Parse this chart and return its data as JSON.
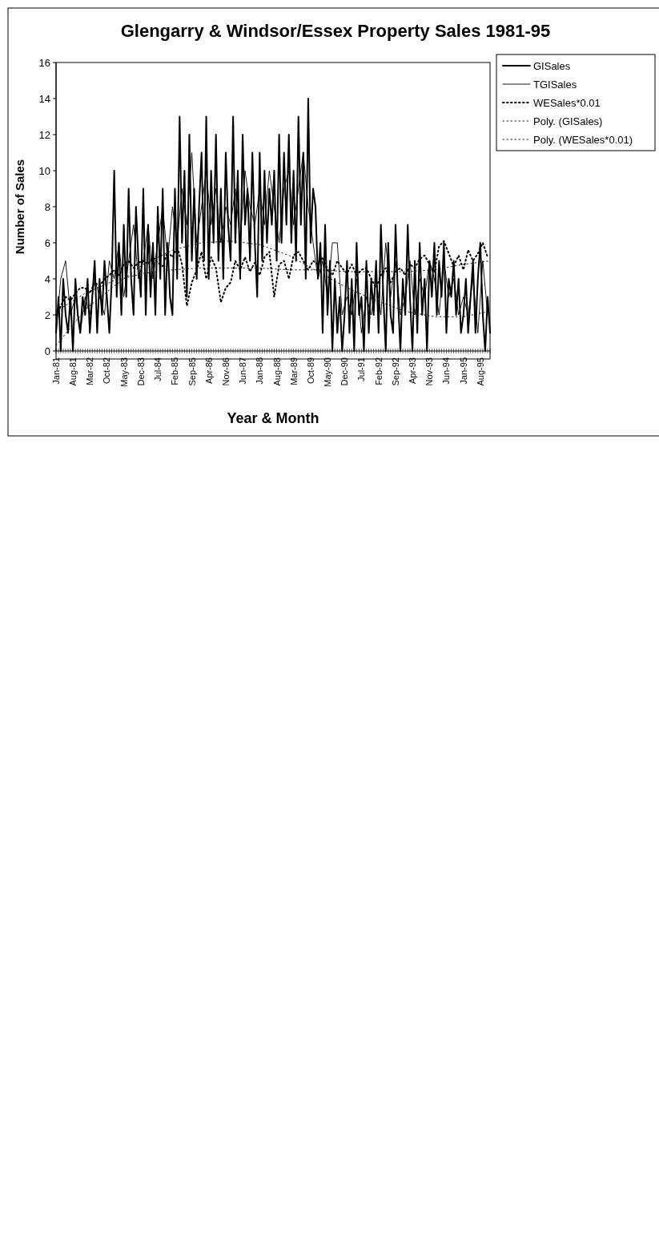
{
  "chart_data": {
    "type": "line",
    "title": "Glengarry & Windsor/Essex Property Sales 1981-95",
    "xlabel": "Year & Month",
    "ylabel": "Number of Sales",
    "x": [
      "1981-01",
      "1981-02",
      "1981-03",
      "1981-04",
      "1981-05",
      "1981-06",
      "1981-07",
      "1981-08",
      "1981-09",
      "1981-10",
      "1981-11",
      "1981-12",
      "1982-01",
      "1982-02",
      "1982-03",
      "1982-04",
      "1982-05",
      "1982-06",
      "1982-07",
      "1982-08",
      "1982-09",
      "1982-10",
      "1982-11",
      "1982-12",
      "1983-01",
      "1983-02",
      "1983-03",
      "1983-04",
      "1983-05",
      "1983-06",
      "1983-07",
      "1983-08",
      "1983-09",
      "1983-10",
      "1983-11",
      "1983-12",
      "1984-01",
      "1984-02",
      "1984-03",
      "1984-04",
      "1984-05",
      "1984-06",
      "1984-07",
      "1984-08",
      "1984-09",
      "1984-10",
      "1984-11",
      "1984-12",
      "1985-01",
      "1985-02",
      "1985-03",
      "1985-04",
      "1985-05",
      "1985-06",
      "1985-07",
      "1985-08",
      "1985-09",
      "1985-10",
      "1985-11",
      "1985-12",
      "1986-01",
      "1986-02",
      "1986-03",
      "1986-04",
      "1986-05",
      "1986-06",
      "1986-07",
      "1986-08",
      "1986-09",
      "1986-10",
      "1986-11",
      "1986-12",
      "1987-01",
      "1987-02",
      "1987-03",
      "1987-04",
      "1987-05",
      "1987-06",
      "1987-07",
      "1987-08",
      "1987-09",
      "1987-10",
      "1987-11",
      "1987-12",
      "1988-01",
      "1988-02",
      "1988-03",
      "1988-04",
      "1988-05",
      "1988-06",
      "1988-07",
      "1988-08",
      "1988-09",
      "1988-10",
      "1988-11",
      "1988-12",
      "1989-01",
      "1989-02",
      "1989-03",
      "1989-04",
      "1989-05",
      "1989-06",
      "1989-07",
      "1989-08",
      "1989-09",
      "1989-10",
      "1989-11",
      "1989-12",
      "1990-01",
      "1990-02",
      "1990-03",
      "1990-04",
      "1990-05",
      "1990-06",
      "1990-07",
      "1990-08",
      "1990-09",
      "1990-10",
      "1990-11",
      "1990-12",
      "1991-01",
      "1991-02",
      "1991-03",
      "1991-04",
      "1991-05",
      "1991-06",
      "1991-07",
      "1991-08",
      "1991-09",
      "1991-10",
      "1991-11",
      "1991-12",
      "1992-01",
      "1992-02",
      "1992-03",
      "1992-04",
      "1992-05",
      "1992-06",
      "1992-07",
      "1992-08",
      "1992-09",
      "1992-10",
      "1992-11",
      "1992-12",
      "1993-01",
      "1993-02",
      "1993-03",
      "1993-04",
      "1993-05",
      "1993-06",
      "1993-07",
      "1993-08",
      "1993-09",
      "1993-10",
      "1993-11",
      "1993-12",
      "1994-01",
      "1994-02",
      "1994-03",
      "1994-04",
      "1994-05",
      "1994-06",
      "1994-07",
      "1994-08",
      "1994-09",
      "1994-10",
      "1994-11",
      "1994-12",
      "1995-01",
      "1995-02",
      "1995-03",
      "1995-04",
      "1995-05",
      "1995-06",
      "1995-07",
      "1995-08",
      "1995-09",
      "1995-10",
      "1995-11",
      "1995-12"
    ],
    "xlim": [
      "1981-01",
      "1995-12"
    ],
    "xticks": [
      {
        "value": "1981-01",
        "label": "Jan-81"
      },
      {
        "value": "1981-08",
        "label": "Aug-81"
      },
      {
        "value": "1982-03",
        "label": "Mar-82"
      },
      {
        "value": "1982-10",
        "label": "Oct-82"
      },
      {
        "value": "1983-05",
        "label": "May-83"
      },
      {
        "value": "1983-12",
        "label": "Dec-83"
      },
      {
        "value": "1984-07",
        "label": "Jul-84"
      },
      {
        "value": "1985-02",
        "label": "Feb-85"
      },
      {
        "value": "1985-09",
        "label": "Sep-85"
      },
      {
        "value": "1986-04",
        "label": "Apr-86"
      },
      {
        "value": "1986-11",
        "label": "Nov-86"
      },
      {
        "value": "1987-06",
        "label": "Jun-87"
      },
      {
        "value": "1988-01",
        "label": "Jan-88"
      },
      {
        "value": "1988-08",
        "label": "Aug-88"
      },
      {
        "value": "1989-03",
        "label": "Mar-89"
      },
      {
        "value": "1989-10",
        "label": "Oct-89"
      },
      {
        "value": "1990-05",
        "label": "May-90"
      },
      {
        "value": "1990-12",
        "label": "Dec-90"
      },
      {
        "value": "1991-07",
        "label": "Jul-91"
      },
      {
        "value": "1992-02",
        "label": "Feb-92"
      },
      {
        "value": "1992-09",
        "label": "Sep-92"
      },
      {
        "value": "1993-04",
        "label": "Apr-93"
      },
      {
        "value": "1993-11",
        "label": "Nov-93"
      },
      {
        "value": "1994-06",
        "label": "Jun-94"
      },
      {
        "value": "1995-01",
        "label": "Jan-95"
      },
      {
        "value": "1995-08",
        "label": "Aug-95"
      }
    ],
    "ylim": [
      0,
      16
    ],
    "yticks": [
      0,
      2,
      4,
      6,
      8,
      10,
      12,
      14,
      16
    ],
    "grid": false,
    "legend": "top right",
    "marker": "none",
    "series": [
      {
        "name": "GISales",
        "color": "#000000",
        "line_style": "solid",
        "values": [
          1,
          3,
          0,
          4,
          2,
          1,
          3,
          0,
          4,
          2,
          1,
          3,
          2,
          4,
          1,
          3,
          5,
          1,
          4,
          2,
          5,
          3,
          1,
          4,
          10,
          3,
          6,
          2,
          7,
          3,
          9,
          4,
          2,
          8,
          5,
          3,
          9,
          2,
          7,
          3,
          6,
          2,
          8,
          4,
          9,
          2,
          6,
          3,
          2,
          9,
          4,
          13,
          6,
          10,
          3,
          12,
          5,
          9,
          4,
          8,
          11,
          5,
          13,
          4,
          10,
          6,
          12,
          5,
          9,
          4,
          11,
          7,
          5,
          13,
          6,
          10,
          4,
          12,
          7,
          9,
          5,
          11,
          6,
          3,
          11,
          5,
          10,
          6,
          9,
          7,
          10,
          5,
          12,
          6,
          11,
          7,
          12,
          6,
          10,
          5,
          13,
          7,
          11,
          4,
          14,
          6,
          9,
          8,
          4,
          6,
          1,
          7,
          2,
          5,
          0,
          4,
          1,
          3,
          0,
          2,
          5,
          1,
          4,
          0,
          6,
          2,
          3,
          0,
          5,
          1,
          4,
          2,
          5,
          1,
          7,
          3,
          0,
          6,
          2,
          1,
          7,
          3,
          0,
          4,
          2,
          7,
          3,
          0,
          5,
          1,
          6,
          2,
          4,
          0,
          5,
          3,
          6,
          2,
          5,
          3,
          6,
          1,
          4,
          3,
          5,
          2,
          4,
          1,
          2,
          4,
          1,
          3,
          5,
          1,
          4,
          6,
          2,
          0,
          3,
          1
        ]
      },
      {
        "name": "TGISales",
        "color": "#000000",
        "line_style": "solid",
        "x": [
          "1981-01",
          "1981-03",
          "1981-05",
          "1981-07",
          "1981-09",
          "1981-11",
          "1982-01",
          "1982-03",
          "1982-05",
          "1982-07",
          "1982-09",
          "1982-11",
          "1983-01",
          "1983-03",
          "1983-05",
          "1983-07",
          "1983-09",
          "1983-11",
          "1984-01",
          "1984-03",
          "1984-05",
          "1984-07",
          "1984-09",
          "1984-11",
          "1985-01",
          "1985-03",
          "1985-05",
          "1985-07",
          "1985-09",
          "1985-11",
          "1986-01",
          "1986-03",
          "1986-05",
          "1986-07",
          "1986-09",
          "1986-11",
          "1987-01",
          "1987-03",
          "1987-05",
          "1987-07",
          "1987-09",
          "1987-11",
          "1988-01",
          "1988-03",
          "1988-05",
          "1988-07",
          "1988-09",
          "1988-11",
          "1989-01",
          "1989-03",
          "1989-05",
          "1989-07",
          "1989-09",
          "1989-11",
          "1990-01",
          "1990-03",
          "1990-05",
          "1990-07",
          "1990-09",
          "1990-11",
          "1991-01",
          "1991-03",
          "1991-05",
          "1991-07",
          "1991-09",
          "1991-11",
          "1992-01",
          "1992-03",
          "1992-05",
          "1992-07",
          "1992-09",
          "1992-11",
          "1993-01",
          "1993-03",
          "1993-05",
          "1993-07",
          "1993-09",
          "1993-11",
          "1994-01",
          "1994-03",
          "1994-05",
          "1994-07",
          "1994-09",
          "1994-11",
          "1995-01",
          "1995-03",
          "1995-05",
          "1995-07",
          "1995-09",
          "1995-11"
        ],
        "values": [
          1,
          4,
          5,
          2,
          3,
          1,
          3,
          2,
          4,
          3,
          2,
          5,
          4,
          6,
          3,
          5,
          7,
          4,
          5,
          7,
          4,
          6,
          8,
          5,
          8,
          6,
          9,
          7,
          11,
          6,
          8,
          10,
          7,
          9,
          6,
          8,
          7,
          9,
          6,
          10,
          8,
          7,
          9,
          7,
          10,
          8,
          6,
          9,
          10,
          7,
          9,
          11,
          8,
          6,
          4,
          5,
          3,
          6,
          6,
          2,
          3,
          2,
          4,
          1,
          3,
          2,
          4,
          2,
          6,
          3,
          5,
          2,
          3,
          5,
          2,
          4,
          3,
          5,
          4,
          2,
          5,
          3,
          4,
          2,
          3,
          2,
          4,
          1,
          5,
          2
        ]
      },
      {
        "name": "WESales*0.01",
        "color": "#000000",
        "line_style": "dotted",
        "x": [
          "1981-01",
          "1981-03",
          "1981-05",
          "1981-07",
          "1981-09",
          "1981-11",
          "1982-01",
          "1982-03",
          "1982-05",
          "1982-07",
          "1982-09",
          "1982-11",
          "1983-01",
          "1983-03",
          "1983-05",
          "1983-07",
          "1983-09",
          "1983-11",
          "1984-01",
          "1984-03",
          "1984-05",
          "1984-07",
          "1984-09",
          "1984-11",
          "1985-01",
          "1985-03",
          "1985-05",
          "1985-07",
          "1985-09",
          "1985-11",
          "1986-01",
          "1986-03",
          "1986-05",
          "1986-07",
          "1986-09",
          "1986-11",
          "1987-01",
          "1987-03",
          "1987-05",
          "1987-07",
          "1987-09",
          "1987-11",
          "1988-01",
          "1988-03",
          "1988-05",
          "1988-07",
          "1988-09",
          "1988-11",
          "1989-01",
          "1989-03",
          "1989-05",
          "1989-07",
          "1989-09",
          "1989-11",
          "1990-01",
          "1990-03",
          "1990-05",
          "1990-07",
          "1990-09",
          "1990-11",
          "1991-01",
          "1991-03",
          "1991-05",
          "1991-07",
          "1991-09",
          "1991-11",
          "1992-01",
          "1992-03",
          "1992-05",
          "1992-07",
          "1992-09",
          "1992-11",
          "1993-01",
          "1993-03",
          "1993-05",
          "1993-07",
          "1993-09",
          "1993-11",
          "1994-01",
          "1994-03",
          "1994-05",
          "1994-07",
          "1994-09",
          "1994-11",
          "1995-01",
          "1995-03",
          "1995-05",
          "1995-07",
          "1995-09",
          "1995-11"
        ],
        "values": [
          2,
          2.5,
          3,
          2.8,
          3.2,
          3.5,
          3.5,
          3.2,
          3.8,
          3.6,
          4,
          4.2,
          4.5,
          4.2,
          4.8,
          5,
          4.6,
          4.9,
          5,
          4.8,
          5.2,
          4.9,
          4.7,
          5.5,
          5.2,
          5.8,
          4.8,
          2.5,
          3.8,
          4.5,
          5.5,
          4,
          5.2,
          4.6,
          2.7,
          3.5,
          3.8,
          5,
          4.5,
          5.2,
          4.4,
          4.9,
          4.2,
          5.2,
          5.5,
          3,
          4.8,
          5,
          4,
          5.3,
          5.5,
          5,
          4.5,
          5,
          4.8,
          5.2,
          4.5,
          4.2,
          5,
          4.6,
          4.3,
          4.8,
          4.2,
          4.5,
          4.6,
          4,
          3.5,
          4.2,
          4.6,
          3.8,
          4.4,
          4.6,
          4.2,
          4.8,
          4.6,
          5.1,
          5.3,
          4.8,
          4.4,
          5.8,
          6.1,
          5.4,
          4.7,
          5.3,
          4.5,
          5.6,
          5,
          5.4,
          6,
          5.2
        ]
      },
      {
        "name": "Poly. (GISales)",
        "color": "#000000",
        "line_style": "dotted",
        "x": [
          "1981-01",
          "1982-01",
          "1983-01",
          "1984-01",
          "1985-01",
          "1986-01",
          "1987-01",
          "1988-01",
          "1989-01",
          "1990-01",
          "1991-01",
          "1992-01",
          "1993-01",
          "1994-01",
          "1995-01",
          "1995-12"
        ],
        "values": [
          0.3,
          2.3,
          3.6,
          4.8,
          5.6,
          6,
          6.1,
          5.9,
          5.3,
          4.4,
          3.5,
          2.8,
          2.2,
          1.9,
          1.9,
          2.2
        ]
      },
      {
        "name": "Poly. (WESales*0.01)",
        "color": "#000000",
        "line_style": "dotted",
        "x": [
          "1981-01",
          "1982-01",
          "1983-01",
          "1984-01",
          "1985-01",
          "1986-01",
          "1987-01",
          "1988-01",
          "1989-01",
          "1990-01",
          "1991-01",
          "1992-01",
          "1993-01",
          "1994-01",
          "1995-01",
          "1995-12"
        ],
        "values": [
          2.2,
          3.2,
          3.9,
          4.3,
          4.5,
          4.6,
          4.6,
          4.6,
          4.5,
          4.5,
          4.4,
          4.4,
          4.4,
          4.5,
          4.8,
          5
        ]
      }
    ]
  }
}
